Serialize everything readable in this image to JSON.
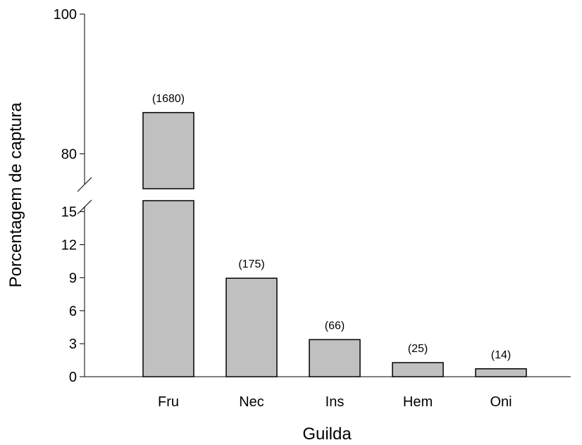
{
  "chart_data": {
    "type": "bar",
    "broken_y_axis": true,
    "xlabel": "Guilda",
    "ylabel": "Porcentagem de captura",
    "categories": [
      "Fru",
      "Nec",
      "Ins",
      "Hem",
      "Oni"
    ],
    "values": [
      85.9,
      8.95,
      3.37,
      1.28,
      0.72
    ],
    "data_labels": [
      "(1680)",
      "(175)",
      "(66)",
      "(25)",
      "(14)"
    ],
    "lower_segment": {
      "ylim": [
        0,
        16
      ],
      "ticks": [
        0,
        3,
        6,
        9,
        12,
        15
      ]
    },
    "upper_segment": {
      "ylim": [
        75,
        100
      ],
      "ticks": [
        80,
        100
      ]
    },
    "bar_color": "#c0c0c0",
    "edge_color": "#000000",
    "grid": false,
    "legend": "none"
  }
}
